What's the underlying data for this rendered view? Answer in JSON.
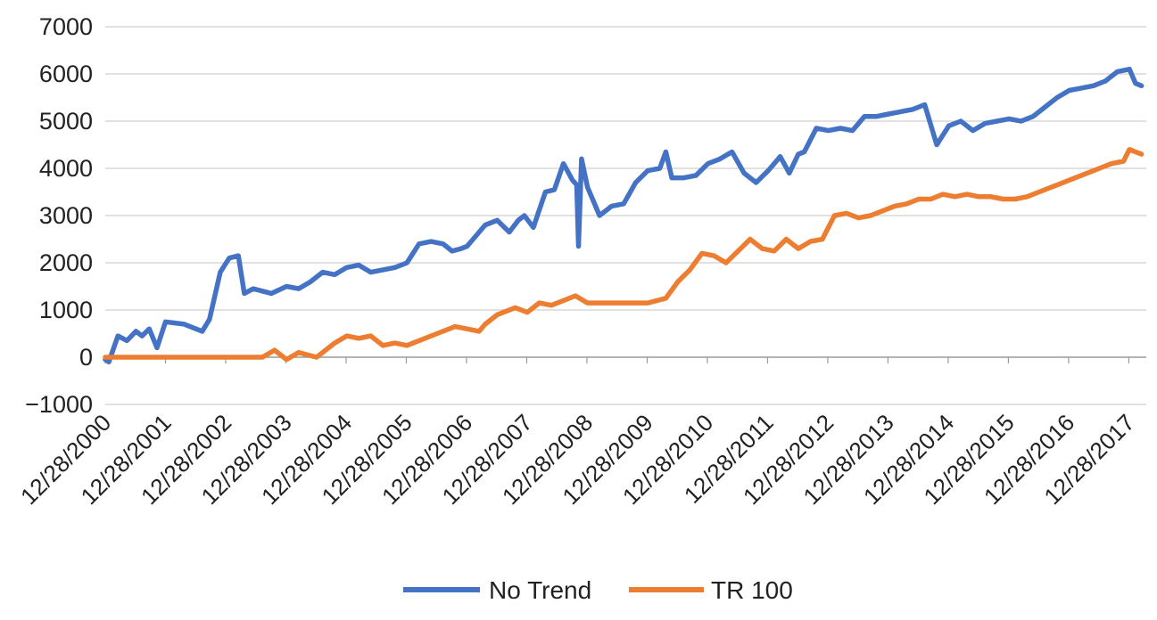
{
  "chart_data": {
    "type": "line",
    "title": "",
    "xlabel": "",
    "ylabel": "",
    "ylim": [
      -1000,
      7000
    ],
    "y_ticks": [
      "7000",
      "6000",
      "5000",
      "4000",
      "3000",
      "2000",
      "1000",
      "0",
      "−1000"
    ],
    "x_ticks": [
      "12/28/2000",
      "12/28/2001",
      "12/28/2002",
      "12/28/2003",
      "12/28/2004",
      "12/28/2005",
      "12/28/2006",
      "12/28/2007",
      "12/28/2008",
      "12/28/2009",
      "12/28/2010",
      "12/28/2011",
      "12/28/2012",
      "12/28/2013",
      "12/28/2014",
      "12/28/2015",
      "12/28/2016",
      "12/28/2017"
    ],
    "grid": true,
    "legend_position": "bottom",
    "series": [
      {
        "name": "No Trend",
        "color": "#4472C4",
        "x": [
          2000.99,
          2001.05,
          2001.2,
          2001.35,
          2001.5,
          2001.6,
          2001.72,
          2001.85,
          2001.99,
          2002.3,
          2002.6,
          2002.72,
          2002.9,
          2003.05,
          2003.2,
          2003.3,
          2003.45,
          2003.6,
          2003.75,
          2004.0,
          2004.2,
          2004.4,
          2004.6,
          2004.8,
          2005.0,
          2005.2,
          2005.4,
          2005.6,
          2005.8,
          2006.0,
          2006.2,
          2006.4,
          2006.6,
          2006.75,
          2006.9,
          2007.0,
          2007.1,
          2007.3,
          2007.5,
          2007.7,
          2007.85,
          2007.95,
          2008.1,
          2008.3,
          2008.45,
          2008.6,
          2008.75,
          2008.82,
          2008.85,
          2008.9,
          2009.0,
          2009.2,
          2009.4,
          2009.6,
          2009.8,
          2010.0,
          2010.2,
          2010.3,
          2010.4,
          2010.6,
          2010.8,
          2011.0,
          2011.2,
          2011.4,
          2011.6,
          2011.8,
          2012.0,
          2012.2,
          2012.35,
          2012.5,
          2012.6,
          2012.8,
          2013.0,
          2013.2,
          2013.4,
          2013.6,
          2013.8,
          2014.0,
          2014.2,
          2014.4,
          2014.6,
          2014.8,
          2015.0,
          2015.2,
          2015.4,
          2015.6,
          2015.8,
          2016.0,
          2016.2,
          2016.4,
          2016.6,
          2016.8,
          2017.0,
          2017.2,
          2017.4,
          2017.6,
          2017.8,
          2018.0,
          2018.1,
          2018.2
        ],
        "values": [
          -50,
          -100,
          450,
          350,
          550,
          450,
          600,
          200,
          750,
          700,
          550,
          800,
          1800,
          2100,
          2150,
          1350,
          1450,
          1400,
          1350,
          1500,
          1450,
          1600,
          1800,
          1750,
          1900,
          1950,
          1800,
          1850,
          1900,
          2000,
          2400,
          2450,
          2400,
          2250,
          2300,
          2350,
          2500,
          2800,
          2900,
          2650,
          2900,
          3000,
          2750,
          3500,
          3550,
          4100,
          3750,
          3650,
          2350,
          4200,
          3600,
          3000,
          3200,
          3250,
          3700,
          3950,
          4000,
          4350,
          3800,
          3800,
          3850,
          4100,
          4200,
          4350,
          3900,
          3700,
          3950,
          4250,
          3900,
          4300,
          4350,
          4850,
          4800,
          4850,
          4800,
          5100,
          5100,
          5150,
          5200,
          5250,
          5350,
          4500,
          4900,
          5000,
          4800,
          4950,
          5000,
          5050,
          5000,
          5100,
          5300,
          5500,
          5650,
          5700,
          5750,
          5850,
          6050,
          6100,
          5800,
          5750
        ]
      },
      {
        "name": "TR 100",
        "color": "#ED7D31",
        "x": [
          2000.99,
          2001.5,
          2002.0,
          2002.5,
          2003.0,
          2003.3,
          2003.6,
          2003.8,
          2004.0,
          2004.2,
          2004.35,
          2004.5,
          2004.8,
          2005.0,
          2005.2,
          2005.4,
          2005.6,
          2005.8,
          2006.0,
          2006.3,
          2006.5,
          2006.8,
          2007.0,
          2007.2,
          2007.3,
          2007.5,
          2007.8,
          2008.0,
          2008.2,
          2008.4,
          2008.6,
          2008.8,
          2009.0,
          2009.2,
          2009.4,
          2009.6,
          2009.8,
          2010.0,
          2010.3,
          2010.5,
          2010.7,
          2010.9,
          2011.1,
          2011.3,
          2011.5,
          2011.7,
          2011.9,
          2012.1,
          2012.3,
          2012.5,
          2012.7,
          2012.9,
          2013.1,
          2013.3,
          2013.5,
          2013.7,
          2013.9,
          2014.1,
          2014.3,
          2014.5,
          2014.7,
          2014.9,
          2015.1,
          2015.3,
          2015.5,
          2015.7,
          2015.9,
          2016.1,
          2016.3,
          2016.5,
          2016.7,
          2016.9,
          2017.1,
          2017.3,
          2017.5,
          2017.7,
          2017.9,
          2018.0,
          2018.1,
          2018.2
        ],
        "values": [
          0,
          0,
          0,
          0,
          0,
          0,
          0,
          150,
          -50,
          100,
          50,
          0,
          300,
          450,
          400,
          450,
          250,
          300,
          250,
          400,
          500,
          650,
          600,
          550,
          700,
          900,
          1050,
          950,
          1150,
          1100,
          1200,
          1300,
          1150,
          1150,
          1150,
          1150,
          1150,
          1150,
          1250,
          1600,
          1850,
          2200,
          2150,
          2000,
          2250,
          2500,
          2300,
          2250,
          2500,
          2300,
          2450,
          2500,
          3000,
          3050,
          2950,
          3000,
          3100,
          3200,
          3250,
          3350,
          3350,
          3450,
          3400,
          3450,
          3400,
          3400,
          3350,
          3350,
          3400,
          3500,
          3600,
          3700,
          3800,
          3900,
          4000,
          4100,
          4150,
          4400,
          4350,
          4300
        ]
      }
    ]
  }
}
